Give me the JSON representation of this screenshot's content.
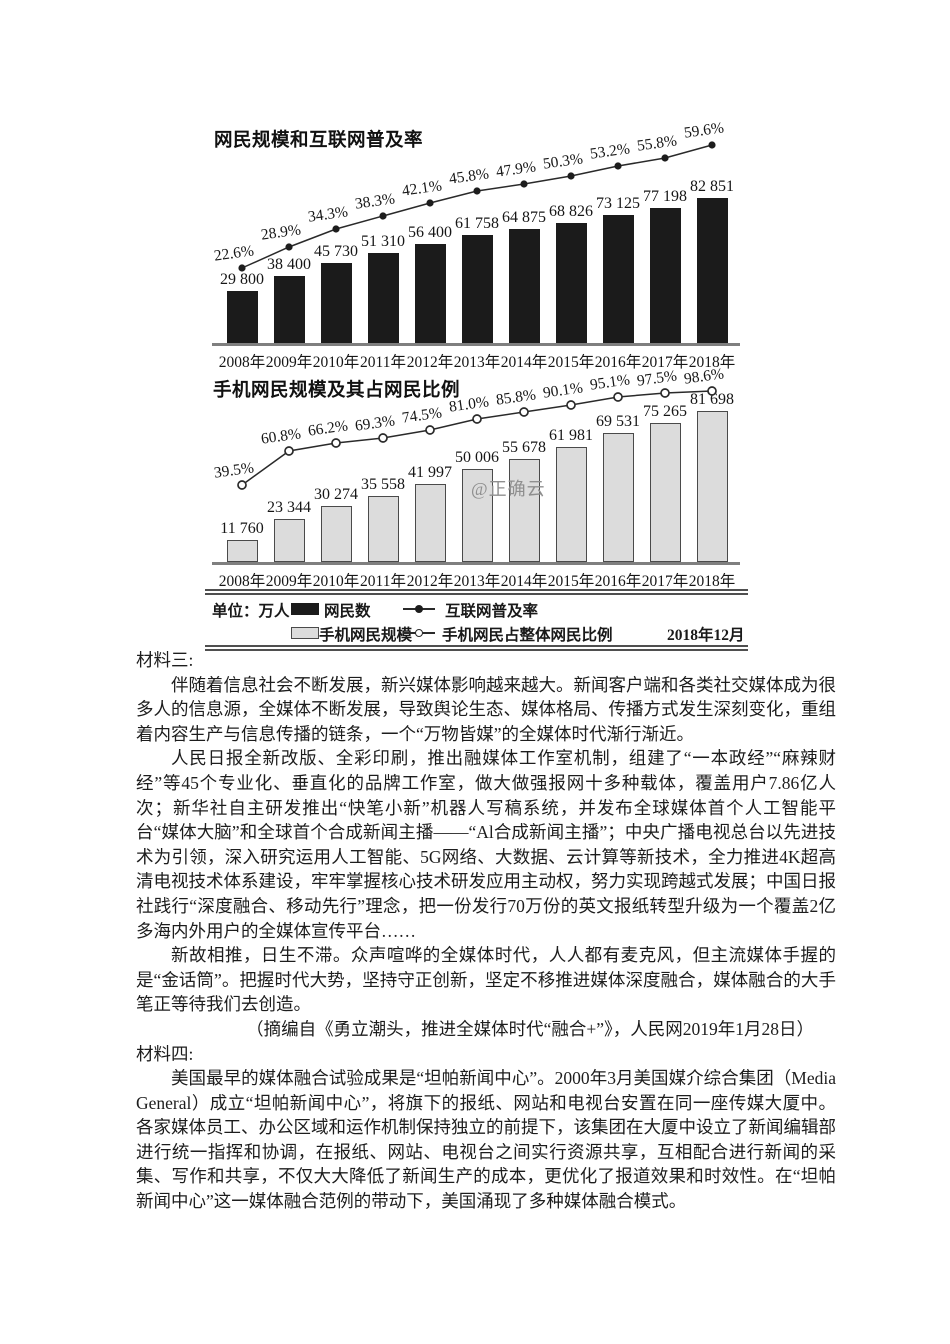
{
  "watermark": "@正确云",
  "charts": [
    {
      "title": "网民规模和互联网普及率",
      "categories": [
        "2008年",
        "2009年",
        "2010年",
        "2011年",
        "2012年",
        "2013年",
        "2014年",
        "2015年",
        "2016年",
        "2017年",
        "2018年"
      ],
      "bar_name": "网民数",
      "bar_values": [
        29800,
        38400,
        45730,
        51310,
        56400,
        61758,
        64875,
        68826,
        73125,
        77198,
        82851
      ],
      "bar_labels": [
        "29 800",
        "38 400",
        "45 730",
        "51 310",
        "56 400",
        "61 758",
        "64 875",
        "68 826",
        "73 125",
        "77 198",
        "82 851"
      ],
      "line_name": "互联网普及率",
      "line_values": [
        22.6,
        28.9,
        34.3,
        38.3,
        42.1,
        45.8,
        47.9,
        50.3,
        53.2,
        55.8,
        59.6
      ],
      "line_labels": [
        "22.6%",
        "28.9%",
        "34.3%",
        "38.3%",
        "42.1%",
        "45.8%",
        "47.9%",
        "50.3%",
        "53.2%",
        "55.8%",
        "59.6%"
      ]
    },
    {
      "title": "手机网民规模及其占网民比例",
      "categories": [
        "2008年",
        "2009年",
        "2010年",
        "2011年",
        "2012年",
        "2013年",
        "2014年",
        "2015年",
        "2016年",
        "2017年",
        "2018年"
      ],
      "bar_name": "手机网民规模",
      "bar_values": [
        11760,
        23344,
        30274,
        35558,
        41997,
        50006,
        55678,
        61981,
        69531,
        75265,
        81698
      ],
      "bar_labels": [
        "11 760",
        "23 344",
        "30 274",
        "35 558",
        "41 997",
        "50 006",
        "55 678",
        "61 981",
        "69 531",
        "75 265",
        "81 698"
      ],
      "line_name": "手机网民占整体网民比例",
      "line_values": [
        39.5,
        60.8,
        66.2,
        69.3,
        74.5,
        81.0,
        85.8,
        90.1,
        95.1,
        97.5,
        98.6
      ],
      "line_labels": [
        "39.5%",
        "60.8%",
        "66.2%",
        "69.3%",
        "74.5%",
        "81.0%",
        "85.8%",
        "90.1%",
        "95.1%",
        "97.5%",
        "98.6%"
      ]
    }
  ],
  "chart_data": [
    {
      "type": "bar+line",
      "title": "网民规模和互联网普及率",
      "categories": [
        "2008年",
        "2009年",
        "2010年",
        "2011年",
        "2012年",
        "2013年",
        "2014年",
        "2015年",
        "2016年",
        "2017年",
        "2018年"
      ],
      "series": [
        {
          "name": "网民数",
          "type": "bar",
          "unit": "万人",
          "values": [
            29800,
            38400,
            45730,
            51310,
            56400,
            61758,
            64875,
            68826,
            73125,
            77198,
            82851
          ]
        },
        {
          "name": "互联网普及率",
          "type": "line",
          "unit": "%",
          "values": [
            22.6,
            28.9,
            34.3,
            38.3,
            42.1,
            45.8,
            47.9,
            50.3,
            53.2,
            55.8,
            59.6
          ]
        }
      ],
      "legend_position": "bottom",
      "grid": false
    },
    {
      "type": "bar+line",
      "title": "手机网民规模及其占网民比例",
      "categories": [
        "2008年",
        "2009年",
        "2010年",
        "2011年",
        "2012年",
        "2013年",
        "2014年",
        "2015年",
        "2016年",
        "2017年",
        "2018年"
      ],
      "series": [
        {
          "name": "手机网民规模",
          "type": "bar",
          "unit": "万人",
          "values": [
            11760,
            23344,
            30274,
            35558,
            41997,
            50006,
            55678,
            61981,
            69531,
            75265,
            81698
          ]
        },
        {
          "name": "手机网民占整体网民比例",
          "type": "line",
          "unit": "%",
          "values": [
            39.5,
            60.8,
            66.2,
            69.3,
            74.5,
            81.0,
            85.8,
            90.1,
            95.1,
            97.5,
            98.6
          ]
        }
      ],
      "legend_position": "bottom",
      "grid": false
    }
  ],
  "legend": {
    "unit_label": "单位：万人",
    "date_label": "2018年12月",
    "items": [
      {
        "swatch": "black-bar",
        "label": "网民数"
      },
      {
        "swatch": "line-filled-dot",
        "label": "互联网普及率"
      },
      {
        "swatch": "gray-bar",
        "label": "手机网民规模"
      },
      {
        "swatch": "line-open-dot",
        "label": "手机网民占整体网民比例"
      }
    ]
  },
  "document": {
    "sections": [
      {
        "heading": "材料三:",
        "paragraphs": [
          "伴随着信息社会不断发展，新兴媒体影响越来越大。新闻客户端和各类社交媒体成为很多人的信息源，全媒体不断发展，导致舆论生态、媒体格局、传播方式发生深刻变化，重组着内容生产与信息传播的链条，一个“万物皆媒”的全媒体时代渐行渐近。",
          "人民日报全新改版、全彩印刷，推出融媒体工作室机制，组建了“一本政经”“麻辣财经”等45个专业化、垂直化的品牌工作室，做大做强报网十多种载体，覆盖用户7.86亿人次；新华社自主研发推出“快笔小新”机器人写稿系统，并发布全球媒体首个人工智能平台“媒体大脑”和全球首个合成新闻主播——“Al合成新闻主播”；中央广播电视总台以先进技术为引领，深入研究运用人工智能、5G网络、大数据、云计算等新技术，全力推进4K超高清电视技术体系建设，牢牢掌握核心技术研发应用主动权，努力实现跨越式发展；中国日报社践行“深度融合、移动先行”理念，把一份发行70万份的英文报纸转型升级为一个覆盖2亿多海内外用户的全媒体宣传平台……",
          "新故相推，日生不滞。众声喧哗的全媒体时代，人人都有麦克风，但主流媒体手握的是“金话筒”。把握时代大势，坚持守正创新，坚定不移推进媒体深度融合，媒体融合的大手笔正等待我们去创造。"
        ],
        "citation": "（摘编自《勇立潮头，推进全媒体时代“融合+”》，人民网2019年1月28日）"
      },
      {
        "heading": "材料四:",
        "paragraphs": [
          "美国最早的媒体融合试验成果是“坦帕新闻中心”。2000年3月美国媒介综合集团（Media General）成立“坦帕新闻中心”，将旗下的报纸、网站和电视台安置在同一座传媒大厦中。各家媒体员工、办公区域和运作机制保持独立的前提下，该集团在大厦中设立了新闻编辑部进行统一指挥和协调，在报纸、网站、电视台之间实行资源共享，互相配合进行新闻的采集、写作和共享，不仅大大降低了新闻生产的成本，更优化了报道效果和时效性。在“坦帕新闻中心”这一媒体融合范例的带动下，美国涌现了多种媒体融合模式。"
        ]
      }
    ]
  }
}
